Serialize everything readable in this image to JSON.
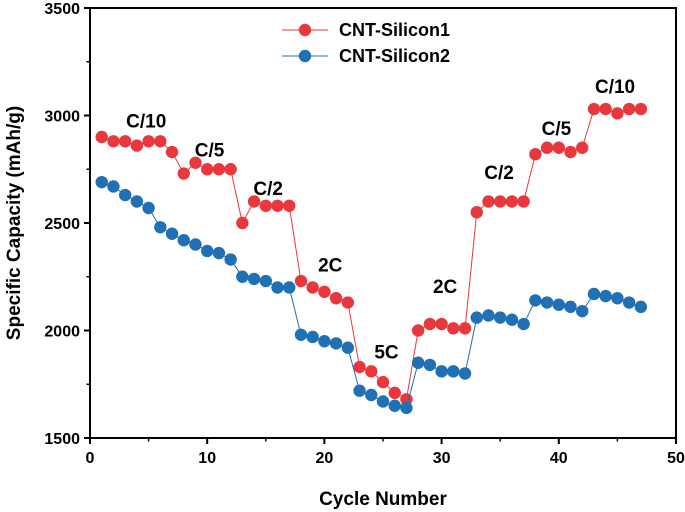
{
  "chart_data": {
    "type": "scatter",
    "title": "",
    "xlabel": "Cycle Number",
    "ylabel": "Specific Capacity (mAh/g)",
    "xlim": [
      0,
      50
    ],
    "ylim": [
      1500,
      3500
    ],
    "xticks": [
      0,
      10,
      20,
      30,
      40,
      50
    ],
    "yticks": [
      1500,
      2000,
      2500,
      3000,
      3500
    ],
    "grid": false,
    "legend_position": "top-center",
    "series": [
      {
        "name": "CNT-Silicon1",
        "color": "#e8383d",
        "x": [
          1,
          2,
          3,
          4,
          5,
          6,
          7,
          8,
          9,
          10,
          11,
          12,
          13,
          14,
          15,
          16,
          17,
          18,
          19,
          20,
          21,
          22,
          23,
          24,
          25,
          26,
          27,
          28,
          29,
          30,
          31,
          32,
          33,
          34,
          35,
          36,
          37,
          38,
          39,
          40,
          41,
          42,
          43,
          44,
          45,
          46,
          47
        ],
        "values": [
          2900,
          2880,
          2880,
          2860,
          2880,
          2880,
          2830,
          2730,
          2780,
          2750,
          2750,
          2750,
          2500,
          2600,
          2580,
          2580,
          2580,
          2230,
          2200,
          2180,
          2150,
          2130,
          1830,
          1810,
          1760,
          1710,
          1680,
          2000,
          2030,
          2030,
          2010,
          2010,
          2550,
          2600,
          2600,
          2600,
          2600,
          2820,
          2850,
          2850,
          2830,
          2850,
          3030,
          3030,
          3010,
          3030,
          3030
        ]
      },
      {
        "name": "CNT-Silicon2",
        "color": "#1f70b4",
        "x": [
          1,
          2,
          3,
          4,
          5,
          6,
          7,
          8,
          9,
          10,
          11,
          12,
          13,
          14,
          15,
          16,
          17,
          18,
          19,
          20,
          21,
          22,
          23,
          24,
          25,
          26,
          27,
          28,
          29,
          30,
          31,
          32,
          33,
          34,
          35,
          36,
          37,
          38,
          39,
          40,
          41,
          42,
          43,
          44,
          45,
          46,
          47
        ],
        "values": [
          2690,
          2670,
          2630,
          2600,
          2570,
          2480,
          2450,
          2420,
          2400,
          2370,
          2360,
          2330,
          2250,
          2240,
          2230,
          2200,
          2200,
          1980,
          1970,
          1950,
          1940,
          1920,
          1720,
          1700,
          1670,
          1650,
          1640,
          1850,
          1840,
          1810,
          1810,
          1800,
          2060,
          2070,
          2060,
          2050,
          2030,
          2140,
          2130,
          2120,
          2110,
          2090,
          2170,
          2160,
          2150,
          2130,
          2110
        ]
      }
    ],
    "annotations": [
      {
        "text": "C/10",
        "x": 4.8,
        "y": 2945
      },
      {
        "text": "C/5",
        "x": 10.2,
        "y": 2810
      },
      {
        "text": "C/2",
        "x": 15.2,
        "y": 2630
      },
      {
        "text": "2C",
        "x": 20.5,
        "y": 2275
      },
      {
        "text": "5C",
        "x": 25.3,
        "y": 1870
      },
      {
        "text": "2C",
        "x": 30.3,
        "y": 2175
      },
      {
        "text": "C/2",
        "x": 34.9,
        "y": 2705
      },
      {
        "text": "C/5",
        "x": 39.8,
        "y": 2910
      },
      {
        "text": "C/10",
        "x": 44.8,
        "y": 3105
      }
    ]
  }
}
